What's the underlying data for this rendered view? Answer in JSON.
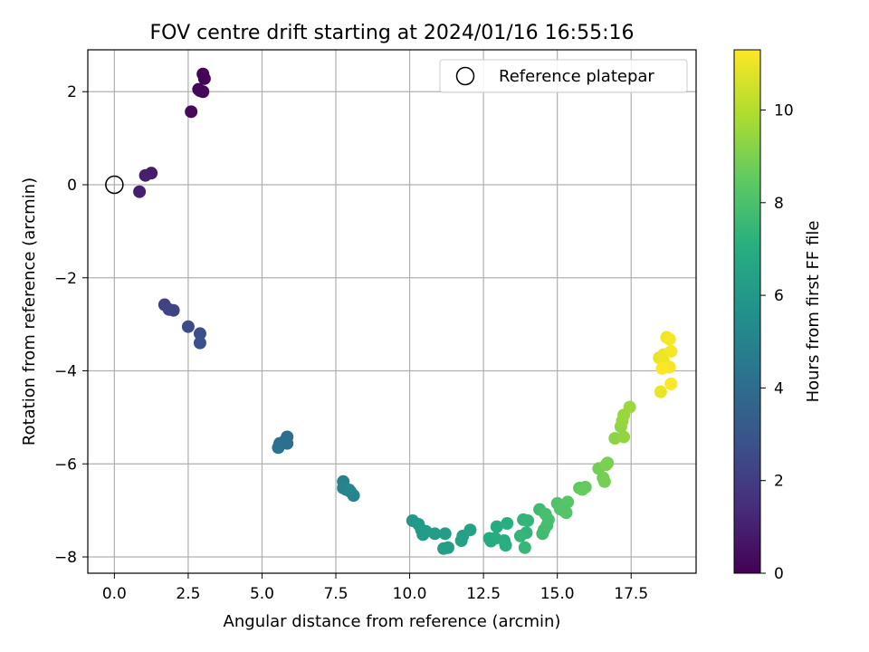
{
  "chart_data": {
    "type": "scatter",
    "title": "FOV centre drift starting at 2024/01/16 16:55:16",
    "xlabel": "Angular distance from reference (arcmin)",
    "ylabel": "Rotation from reference (arcmin)",
    "xlim": [
      -0.9,
      19.7
    ],
    "ylim": [
      -8.35,
      2.9
    ],
    "xticks": [
      0.0,
      2.5,
      5.0,
      7.5,
      10.0,
      12.5,
      15.0,
      17.5
    ],
    "xtick_labels": [
      "0.0",
      "2.5",
      "5.0",
      "7.5",
      "10.0",
      "12.5",
      "15.0",
      "17.5"
    ],
    "yticks": [
      -8,
      -6,
      -4,
      -2,
      0,
      2
    ],
    "ytick_labels": [
      "−8",
      "−6",
      "−4",
      "−2",
      "0",
      "2"
    ],
    "grid": true,
    "legend": {
      "position": "upper right",
      "entries": [
        "Reference platepar"
      ]
    },
    "reference_point": {
      "label": "Reference platepar",
      "x": 0.0,
      "y": 0.0,
      "marker": "open-circle"
    },
    "colorbar": {
      "label": "Hours from first FF file",
      "colormap": "viridis",
      "range": [
        0,
        11.3
      ],
      "ticks": [
        0,
        2,
        4,
        6,
        8,
        10
      ],
      "tick_labels": [
        "0",
        "2",
        "4",
        "6",
        "8",
        "10"
      ]
    },
    "series": [
      {
        "color_by": "hours",
        "points": [
          [
            3.0,
            2.38,
            0.1
          ],
          [
            3.05,
            2.28,
            0.1
          ],
          [
            2.85,
            2.05,
            0.15
          ],
          [
            3.0,
            2.0,
            0.15
          ],
          [
            2.9,
            2.02,
            0.2
          ],
          [
            2.6,
            1.57,
            0.3
          ],
          [
            1.25,
            0.25,
            0.9
          ],
          [
            1.05,
            0.2,
            0.95
          ],
          [
            0.85,
            -0.15,
            1.0
          ],
          [
            1.7,
            -2.58,
            2.2
          ],
          [
            1.85,
            -2.68,
            2.25
          ],
          [
            2.0,
            -2.7,
            2.3
          ],
          [
            2.5,
            -3.05,
            2.6
          ],
          [
            2.9,
            -3.2,
            2.7
          ],
          [
            2.9,
            -3.4,
            2.75
          ],
          [
            5.85,
            -5.42,
            4.0
          ],
          [
            5.75,
            -5.52,
            4.05
          ],
          [
            5.85,
            -5.56,
            4.1
          ],
          [
            5.6,
            -5.56,
            4.15
          ],
          [
            5.55,
            -5.65,
            4.2
          ],
          [
            7.75,
            -6.38,
            4.9
          ],
          [
            7.75,
            -6.52,
            4.95
          ],
          [
            7.85,
            -6.55,
            5.0
          ],
          [
            8.0,
            -6.6,
            5.05
          ],
          [
            8.1,
            -6.68,
            5.1
          ],
          [
            7.95,
            -6.56,
            5.15
          ],
          [
            10.1,
            -7.22,
            6.0
          ],
          [
            10.3,
            -7.3,
            6.05
          ],
          [
            10.4,
            -7.42,
            6.1
          ],
          [
            10.55,
            -7.45,
            6.15
          ],
          [
            10.45,
            -7.52,
            6.15
          ],
          [
            10.85,
            -7.5,
            6.2
          ],
          [
            11.2,
            -7.5,
            6.25
          ],
          [
            11.15,
            -7.82,
            6.3
          ],
          [
            11.3,
            -7.8,
            6.35
          ],
          [
            11.8,
            -7.55,
            6.4
          ],
          [
            11.75,
            -7.65,
            6.45
          ],
          [
            12.05,
            -7.42,
            6.5
          ],
          [
            12.7,
            -7.6,
            6.8
          ],
          [
            12.75,
            -7.66,
            6.85
          ],
          [
            12.9,
            -7.6,
            6.9
          ],
          [
            12.95,
            -7.35,
            6.95
          ],
          [
            13.2,
            -7.65,
            7.0
          ],
          [
            13.25,
            -7.75,
            7.05
          ],
          [
            13.3,
            -7.28,
            7.1
          ],
          [
            13.85,
            -7.2,
            7.3
          ],
          [
            13.95,
            -7.48,
            7.35
          ],
          [
            14.0,
            -7.22,
            7.4
          ],
          [
            13.75,
            -7.55,
            7.45
          ],
          [
            13.9,
            -7.8,
            7.5
          ],
          [
            14.4,
            -6.98,
            7.7
          ],
          [
            14.5,
            -7.5,
            7.75
          ],
          [
            14.55,
            -7.42,
            7.8
          ],
          [
            14.65,
            -7.32,
            7.85
          ],
          [
            14.7,
            -7.2,
            7.9
          ],
          [
            14.6,
            -7.08,
            7.9
          ],
          [
            15.0,
            -6.85,
            8.1
          ],
          [
            15.1,
            -6.97,
            8.15
          ],
          [
            15.3,
            -7.05,
            8.2
          ],
          [
            15.35,
            -6.82,
            8.25
          ],
          [
            15.2,
            -7.0,
            8.2
          ],
          [
            15.75,
            -6.52,
            8.5
          ],
          [
            15.95,
            -6.5,
            8.55
          ],
          [
            15.85,
            -6.55,
            8.6
          ],
          [
            16.4,
            -6.1,
            8.8
          ],
          [
            16.55,
            -6.3,
            8.85
          ],
          [
            16.6,
            -6.38,
            8.9
          ],
          [
            16.7,
            -5.98,
            8.95
          ],
          [
            16.65,
            -6.02,
            9.0
          ],
          [
            16.95,
            -5.45,
            9.3
          ],
          [
            17.15,
            -5.2,
            9.35
          ],
          [
            17.25,
            -5.42,
            9.4
          ],
          [
            17.2,
            -5.08,
            9.45
          ],
          [
            17.25,
            -4.95,
            9.5
          ],
          [
            17.45,
            -4.78,
            9.6
          ],
          [
            18.45,
            -3.72,
            10.9
          ],
          [
            18.5,
            -4.45,
            10.95
          ],
          [
            18.6,
            -3.65,
            11.0
          ],
          [
            18.6,
            -3.8,
            11.05
          ],
          [
            18.7,
            -3.28,
            11.1
          ],
          [
            18.8,
            -3.32,
            11.15
          ],
          [
            18.85,
            -3.58,
            11.15
          ],
          [
            18.8,
            -3.92,
            11.2
          ],
          [
            18.85,
            -4.28,
            11.25
          ],
          [
            18.55,
            -3.95,
            11.3
          ]
        ]
      }
    ]
  }
}
